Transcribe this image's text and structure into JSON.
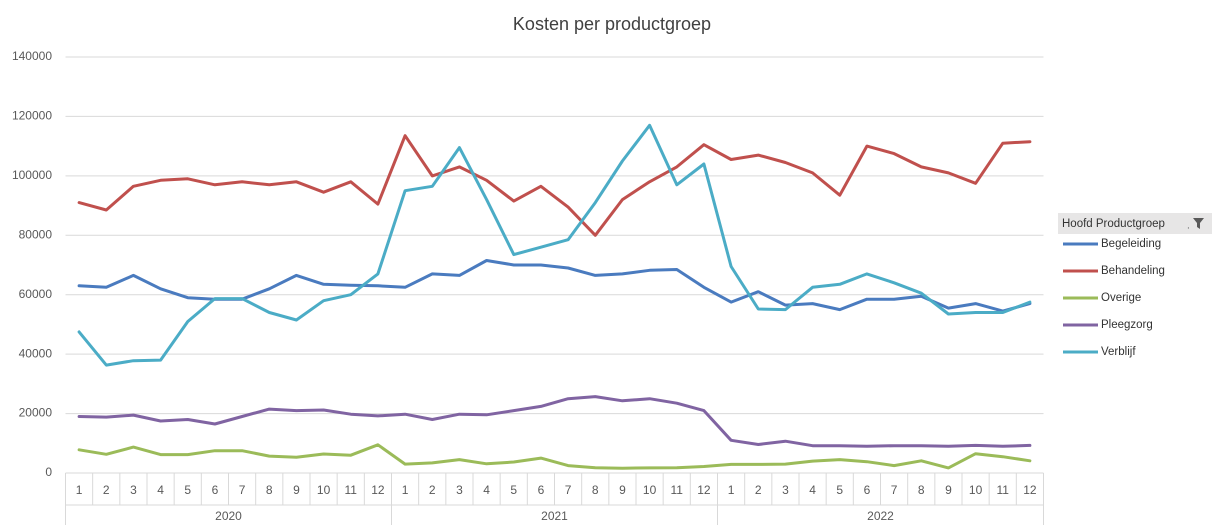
{
  "chart_data": {
    "type": "line",
    "title": "Kosten per productgroep",
    "categories": [
      "1",
      "2",
      "3",
      "4",
      "5",
      "6",
      "7",
      "8",
      "9",
      "10",
      "11",
      "12",
      "1",
      "2",
      "3",
      "4",
      "5",
      "6",
      "7",
      "8",
      "9",
      "10",
      "11",
      "12",
      "1",
      "2",
      "3",
      "4",
      "5",
      "6",
      "7",
      "8",
      "9",
      "10",
      "11",
      "12"
    ],
    "years": [
      "2020",
      "2021",
      "2022"
    ],
    "legend_title": "Hoofd Productgroep",
    "ylim": [
      0,
      140000
    ],
    "yticks": [
      0,
      20000,
      40000,
      60000,
      80000,
      100000,
      120000,
      140000
    ],
    "grid": true,
    "series": [
      {
        "name": "Begeleiding",
        "color": "#4a7bbf",
        "values": [
          63000,
          62500,
          66500,
          62000,
          59000,
          58500,
          58500,
          62000,
          66500,
          63500,
          63200,
          63000,
          62500,
          67000,
          66500,
          71500,
          70000,
          70000,
          69000,
          66500,
          67000,
          68200,
          68500,
          62500,
          57500,
          61000,
          56500,
          57000,
          55000,
          58500,
          58500,
          59500,
          55500,
          57000,
          54500,
          57000
        ]
      },
      {
        "name": "Behandeling",
        "color": "#c0504d",
        "values": [
          91000,
          88500,
          96500,
          98500,
          99000,
          97000,
          98000,
          97000,
          98000,
          94500,
          98000,
          90500,
          113500,
          100000,
          103000,
          98500,
          91500,
          96500,
          89500,
          80000,
          92000,
          98000,
          103000,
          110500,
          105500,
          107000,
          104500,
          101000,
          93500,
          110000,
          107500,
          103000,
          101000,
          97500,
          111000,
          111500
        ]
      },
      {
        "name": "Overige",
        "color": "#9bbb59",
        "values": [
          7800,
          6300,
          8700,
          6200,
          6200,
          7500,
          7500,
          5700,
          5300,
          6400,
          6000,
          9500,
          3000,
          3400,
          4500,
          3100,
          3700,
          5000,
          2500,
          1800,
          1600,
          1700,
          1800,
          2200,
          2900,
          2900,
          3000,
          4000,
          4500,
          3800,
          2500,
          4100,
          1700,
          6500,
          5500,
          4100
        ]
      },
      {
        "name": "Pleegzorg",
        "color": "#8064a2",
        "values": [
          19000,
          18800,
          19500,
          17500,
          18000,
          16500,
          19000,
          21500,
          21000,
          21200,
          19800,
          19200,
          19800,
          18000,
          19800,
          19600,
          21000,
          22400,
          25000,
          25700,
          24300,
          25000,
          23500,
          21000,
          11000,
          9600,
          10700,
          9200,
          9200,
          9000,
          9200,
          9200,
          9000,
          9300,
          9000,
          9300
        ]
      },
      {
        "name": "Verblijf",
        "color": "#4bacc6",
        "values": [
          47500,
          36300,
          37800,
          38000,
          51000,
          58700,
          58700,
          54000,
          51500,
          58000,
          60000,
          67000,
          95000,
          96500,
          109500,
          92000,
          73500,
          76000,
          78500,
          91000,
          105000,
          117000,
          97000,
          104000,
          69500,
          55200,
          55000,
          62500,
          63500,
          67000,
          64000,
          60500,
          53500,
          54000,
          54000,
          57500
        ]
      }
    ]
  }
}
